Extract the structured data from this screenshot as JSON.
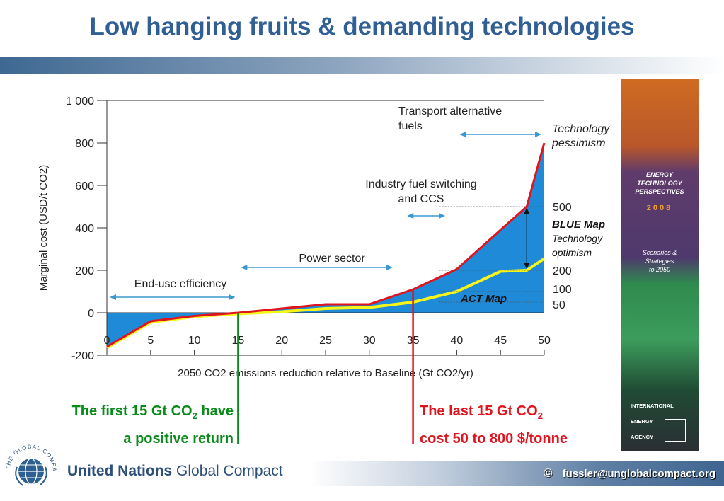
{
  "title": "Low hanging fruits & demanding technologies",
  "chart_data": {
    "type": "area",
    "xlabel": "2050 CO2 emissions reduction relative to Baseline (Gt CO2/yr)",
    "ylabel": "Marginal cost (USD/t CO2)",
    "xlim": [
      0,
      50
    ],
    "ylim": [
      -200,
      1000
    ],
    "x_ticks": [
      0,
      5,
      10,
      15,
      20,
      25,
      30,
      35,
      40,
      45,
      50
    ],
    "y_ticks": [
      -200,
      0,
      200,
      400,
      600,
      800,
      1000
    ],
    "y_tick_labels": [
      "-200",
      "0",
      "200",
      "400",
      "600",
      "800",
      "1 000"
    ],
    "right_ticks": [
      "500",
      "200",
      "100",
      "50"
    ],
    "series": [
      {
        "name": "BLUE Map",
        "color": "#e0141e",
        "x": [
          0,
          5,
          10,
          15,
          20,
          25,
          30,
          35,
          40,
          45,
          48,
          50
        ],
        "y": [
          -160,
          -40,
          -15,
          0,
          20,
          40,
          40,
          110,
          205,
          390,
          500,
          800
        ]
      },
      {
        "name": "ACT Map",
        "color": "#f5f51a",
        "x": [
          0,
          5,
          10,
          15,
          20,
          25,
          30,
          35,
          40,
          45,
          48,
          50
        ],
        "y": [
          -165,
          -45,
          -18,
          -5,
          5,
          20,
          25,
          50,
          100,
          195,
          200,
          255
        ]
      }
    ],
    "series_labels": {
      "blue_map": "BLUE Map",
      "blue_map_sub": "Technology",
      "blue_map_sub2": "optimism",
      "act_map": "ACT Map",
      "pessimism": "Technology",
      "pessimism2": "pessimism"
    },
    "annotations": [
      {
        "id": "end_use",
        "lines": [
          "End-use efficiency"
        ],
        "range": [
          0,
          15
        ]
      },
      {
        "id": "power",
        "lines": [
          "Power sector"
        ],
        "range": [
          15,
          33
        ]
      },
      {
        "id": "industry",
        "lines": [
          "Industry fuel switching",
          "and CCS"
        ],
        "range": [
          34,
          39
        ]
      },
      {
        "id": "transport",
        "lines": [
          "Transport alternative",
          "fuels"
        ],
        "range": [
          40,
          50
        ]
      }
    ],
    "colors": {
      "fill": "#1e8ad8",
      "blue_line": "#e0141e",
      "act_line": "#f5f51a",
      "arrow": "#3a98d0",
      "text": "#222222"
    }
  },
  "notes": {
    "green_line1": "The first 15 Gt CO",
    "green_sub": "2",
    "green_line1_end": " have",
    "green_line2": "a positive return",
    "red_line1": "The last 15 Gt CO",
    "red_sub": "2",
    "red_line2": "cost 50 to 800 $/tonne"
  },
  "cover": {
    "line1": "ENERGY",
    "line2": "TECHNOLOGY",
    "line3": "PERSPECTIVES",
    "year": "2008",
    "sub1": "Scenarios &",
    "sub2": "Strategies",
    "sub3": "to 2050",
    "iea1": "INTERNATIONAL",
    "iea2": "ENERGY",
    "iea3": "AGENCY"
  },
  "footer": {
    "org_bold": "United Nations",
    "org_light": "Global Compact",
    "copyright": "©",
    "email": "fussler@unglobalcompact.org",
    "logo_text": "THE GLOBAL COMPACT"
  }
}
